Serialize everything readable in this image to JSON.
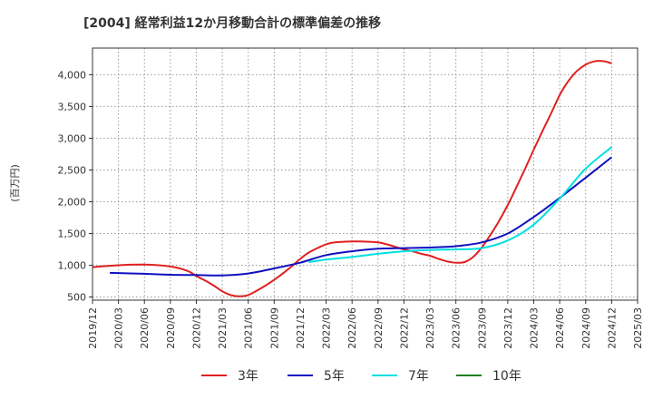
{
  "chart_data": {
    "type": "line",
    "title": "[2004]  経常利益12か月移動合計の標準偏差の推移",
    "xlabel": "",
    "ylabel": "(百万円)",
    "ylim": [
      450,
      4420
    ],
    "yticks": [
      500,
      1000,
      1500,
      2000,
      2500,
      3000,
      3500,
      4000
    ],
    "ytick_labels": [
      "500",
      "1,000",
      "1,500",
      "2,000",
      "2,500",
      "3,000",
      "3,500",
      "4,000"
    ],
    "xlim": [
      "2019/12",
      "2025/03"
    ],
    "xtick_labels": [
      "2019/12",
      "2020/03",
      "2020/06",
      "2020/09",
      "2020/12",
      "2021/03",
      "2021/06",
      "2021/09",
      "2021/12",
      "2022/03",
      "2022/06",
      "2022/09",
      "2022/12",
      "2023/03",
      "2023/06",
      "2023/09",
      "2023/12",
      "2024/03",
      "2024/06",
      "2024/09",
      "2024/12",
      "2025/03"
    ],
    "grid": true,
    "legend_position": "bottom",
    "series": [
      {
        "name": "3年",
        "color": "#e02020",
        "x": [
          "2019/12",
          "2020/03",
          "2020/06",
          "2020/09",
          "2020/11",
          "2020/12",
          "2021/01",
          "2021/02",
          "2021/03",
          "2021/04",
          "2021/05",
          "2021/06",
          "2021/07",
          "2021/08",
          "2021/09",
          "2021/10",
          "2021/11",
          "2021/12",
          "2022/01",
          "2022/02",
          "2022/03",
          "2022/04",
          "2022/05",
          "2022/06",
          "2022/07",
          "2022/08",
          "2022/09",
          "2022/10",
          "2022/11",
          "2022/12",
          "2023/01",
          "2023/02",
          "2023/03",
          "2023/04",
          "2023/05",
          "2023/06",
          "2023/07",
          "2023/08",
          "2023/09",
          "2023/10",
          "2023/11",
          "2023/12",
          "2024/01",
          "2024/02",
          "2024/03",
          "2024/04",
          "2024/05",
          "2024/06",
          "2024/07",
          "2024/08",
          "2024/09",
          "2024/10",
          "2024/11",
          "2024/12"
        ],
        "values": [
          970,
          1000,
          1010,
          980,
          910,
          830,
          760,
          680,
          590,
          530,
          510,
          530,
          600,
          680,
          770,
          870,
          980,
          1100,
          1200,
          1270,
          1330,
          1360,
          1370,
          1375,
          1375,
          1370,
          1360,
          1330,
          1290,
          1250,
          1220,
          1180,
          1150,
          1100,
          1060,
          1040,
          1050,
          1130,
          1280,
          1480,
          1700,
          1950,
          2230,
          2520,
          2820,
          3110,
          3390,
          3680,
          3900,
          4060,
          4160,
          4210,
          4215,
          4180
        ]
      },
      {
        "name": "5年",
        "color": "#1010c0",
        "x": [
          "2020/02",
          "2020/06",
          "2020/09",
          "2020/12",
          "2021/03",
          "2021/06",
          "2021/09",
          "2021/12",
          "2022/03",
          "2022/06",
          "2022/09",
          "2022/12",
          "2023/03",
          "2023/06",
          "2023/09",
          "2023/12",
          "2024/03",
          "2024/06",
          "2024/09",
          "2024/12"
        ],
        "values": [
          880,
          865,
          850,
          845,
          840,
          870,
          950,
          1040,
          1160,
          1220,
          1260,
          1270,
          1280,
          1300,
          1360,
          1500,
          1760,
          2060,
          2380,
          2700
        ]
      },
      {
        "name": "7年",
        "color": "#00e0e0",
        "x": [
          "2022/01",
          "2022/03",
          "2022/06",
          "2022/09",
          "2022/12",
          "2023/03",
          "2023/06",
          "2023/09",
          "2023/12",
          "2024/03",
          "2024/06",
          "2024/09",
          "2024/12"
        ],
        "values": [
          1050,
          1090,
          1130,
          1180,
          1220,
          1240,
          1250,
          1270,
          1390,
          1640,
          2050,
          2520,
          2860
        ]
      },
      {
        "name": "10年",
        "color": "#208020",
        "x": [],
        "values": []
      }
    ]
  }
}
